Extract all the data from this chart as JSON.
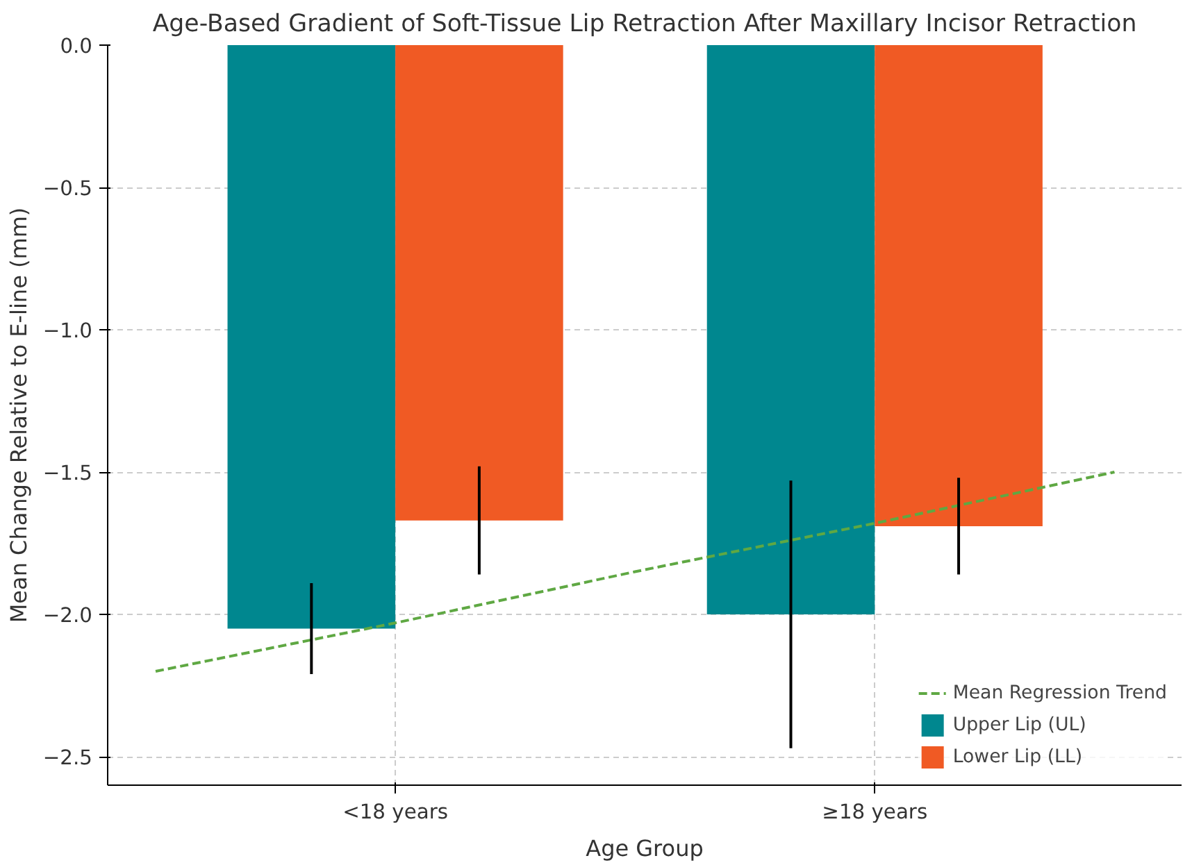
{
  "chart_data": {
    "type": "bar",
    "title": "Age-Based Gradient of Soft-Tissue Lip Retraction After Maxillary Incisor Retraction",
    "xlabel": "Age Group",
    "ylabel": "Mean Change Relative to E-line (mm)",
    "categories": [
      null,
      "<18 years",
      null,
      "≥18 years",
      null
    ],
    "series": [
      {
        "name": "Upper Lip (UL)",
        "color": "#00878f",
        "values": [
          null,
          -2.05,
          null,
          -2.0,
          null
        ],
        "errors": [
          null,
          0.16,
          null,
          0.47,
          null
        ]
      },
      {
        "name": "Lower Lip (LL)",
        "color": "#f05a24",
        "values": [
          null,
          -1.67,
          null,
          -1.69,
          null
        ],
        "errors": [
          null,
          0.19,
          null,
          0.17,
          null
        ]
      },
      {
        "name": "Mean Regression Trend",
        "type": "line",
        "color": "#5fa843",
        "line_style": "dashed",
        "values": [
          -2.2,
          -2.03,
          -1.85,
          -1.68,
          -1.5
        ]
      }
    ],
    "ylim": [
      -2.6,
      0.0
    ],
    "yticks": [
      {
        "value": 0.0,
        "label": "0.0"
      },
      {
        "value": -0.5,
        "label": "−0.5"
      },
      {
        "value": -1.0,
        "label": "−1.0"
      },
      {
        "value": -1.5,
        "label": "−1.5"
      },
      {
        "value": -2.0,
        "label": "−2.0"
      },
      {
        "value": -2.5,
        "label": "−2.5"
      }
    ],
    "grid": true,
    "legend": "bottom right"
  }
}
